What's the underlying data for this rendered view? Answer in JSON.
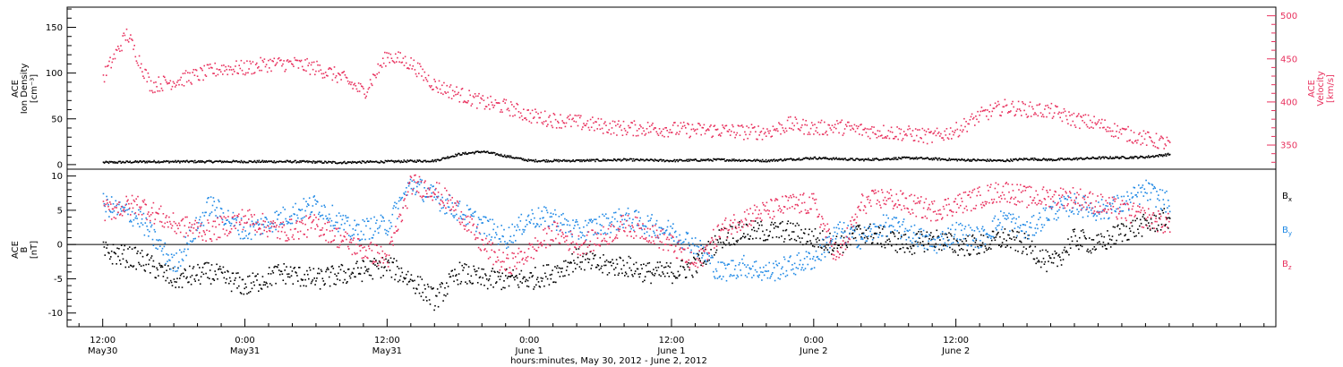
{
  "chart_data": [
    {
      "type": "scatter",
      "panel": "top",
      "ylabel_lines": [
        "ACE",
        "Ion Density",
        "[cm⁻³]"
      ],
      "ylim": [
        -5,
        172
      ],
      "yticks": [
        "0",
        "50",
        "100",
        "150"
      ],
      "ytick_values": [
        0,
        50,
        100,
        150
      ],
      "right_ylabel_lines": [
        "ACE",
        "Velocity",
        "[km/s]"
      ],
      "right_ylim": [
        322,
        510
      ],
      "right_yticks": [
        "350",
        "400",
        "450",
        "500"
      ],
      "right_ytick_values": [
        350,
        400,
        450,
        500
      ],
      "colors": {
        "density": "#000000",
        "velocity": "#e8315e"
      },
      "series": [
        {
          "key": "density",
          "color": "#000000",
          "axis": "left",
          "x": [
            0,
            4,
            8,
            12,
            16,
            20,
            24,
            28,
            30,
            32,
            34,
            36,
            40,
            44,
            48,
            52,
            56,
            60,
            64,
            68,
            72,
            76,
            78,
            80,
            84,
            88,
            90
          ],
          "y": [
            3,
            4,
            4,
            4,
            4,
            3,
            4,
            5,
            12,
            15,
            10,
            5,
            5,
            6,
            5,
            6,
            5,
            8,
            6,
            8,
            6,
            5,
            7,
            6,
            8,
            9,
            12
          ]
        },
        {
          "key": "velocity",
          "color": "#e8315e",
          "axis": "right",
          "x": [
            0,
            2,
            4,
            6,
            8,
            10,
            12,
            14,
            16,
            18,
            20,
            22,
            24,
            26,
            28,
            30,
            32,
            34,
            36,
            38,
            40,
            42,
            44,
            46,
            48,
            50,
            52,
            54,
            56,
            58,
            60,
            62,
            64,
            66,
            68,
            70,
            72,
            74,
            76,
            78,
            80,
            82,
            84,
            86,
            88,
            90
          ],
          "y": [
            430,
            480,
            420,
            425,
            432,
            440,
            440,
            445,
            445,
            440,
            430,
            412,
            455,
            445,
            420,
            410,
            400,
            395,
            385,
            380,
            377,
            373,
            370,
            370,
            369,
            368,
            368,
            366,
            366,
            375,
            370,
            372,
            368,
            366,
            364,
            360,
            368,
            385,
            395,
            392,
            390,
            380,
            375,
            365,
            358,
            352
          ]
        }
      ]
    },
    {
      "type": "scatter",
      "panel": "bottom",
      "ylabel_lines": [
        "ACE",
        "B",
        "[nT]"
      ],
      "ylim": [
        -12,
        11
      ],
      "yticks": [
        "10",
        "5",
        "0",
        "-5",
        "-10"
      ],
      "ytick_values": [
        10,
        5,
        0,
        -5,
        -10
      ],
      "legend": [
        "Bx",
        "By",
        "Bz"
      ],
      "legend_placement": "right",
      "colors": {
        "Bx": "#000000",
        "By": "#1e88e5",
        "Bz": "#e8315e"
      },
      "series": [
        {
          "key": "Bx",
          "color": "#000000",
          "x": [
            0,
            3,
            6,
            9,
            12,
            15,
            18,
            21,
            24,
            26,
            28,
            30,
            32,
            34,
            36,
            38,
            40,
            42,
            44,
            46,
            48,
            50,
            52,
            54,
            56,
            58,
            60,
            62,
            64,
            66,
            68,
            70,
            72,
            74,
            76,
            78,
            80,
            82,
            84,
            86,
            88,
            90
          ],
          "y": [
            -1,
            -2,
            -5,
            -4,
            -6,
            -4,
            -5,
            -4,
            -3,
            -5,
            -8,
            -4,
            -5,
            -5,
            -5,
            -4,
            -2,
            -3,
            -3,
            -4,
            -4,
            -3,
            1,
            2,
            2,
            2,
            1,
            0,
            2,
            1,
            0,
            1,
            0,
            0,
            1,
            0,
            -3,
            1,
            0,
            2,
            3,
            4
          ]
        },
        {
          "key": "By",
          "color": "#1e88e5",
          "x": [
            0,
            3,
            6,
            9,
            12,
            15,
            18,
            21,
            24,
            26,
            28,
            30,
            32,
            34,
            36,
            38,
            40,
            42,
            44,
            46,
            48,
            50,
            52,
            54,
            56,
            58,
            60,
            62,
            64,
            66,
            68,
            70,
            72,
            74,
            76,
            78,
            80,
            82,
            84,
            86,
            88,
            90
          ],
          "y": [
            6,
            4,
            -3,
            6,
            2,
            4,
            6,
            2,
            3,
            9,
            7,
            5,
            3,
            1,
            4,
            4,
            2,
            3,
            4,
            3,
            2,
            0,
            -4,
            -3,
            -4,
            -3,
            -2,
            2,
            1,
            3,
            2,
            0,
            2,
            1,
            4,
            2,
            5,
            6,
            5,
            6,
            8,
            6
          ]
        },
        {
          "key": "Bz",
          "color": "#e8315e",
          "x": [
            0,
            3,
            6,
            9,
            12,
            15,
            18,
            21,
            24,
            26,
            28,
            30,
            32,
            34,
            36,
            38,
            40,
            42,
            44,
            46,
            48,
            50,
            52,
            54,
            56,
            58,
            60,
            62,
            64,
            66,
            68,
            70,
            72,
            74,
            76,
            78,
            80,
            82,
            84,
            86,
            88,
            90
          ],
          "y": [
            5,
            6,
            3,
            2,
            4,
            2,
            3,
            0,
            -2,
            9,
            8,
            5,
            0,
            -3,
            -1,
            2,
            0,
            1,
            3,
            2,
            0,
            -3,
            2,
            4,
            5,
            6,
            6,
            -2,
            6,
            7,
            6,
            5,
            6,
            7,
            8,
            7,
            7,
            7,
            6,
            5,
            4,
            3
          ]
        }
      ]
    }
  ],
  "x_axis": {
    "xlim_hours": [
      -3,
      99
    ],
    "ticks": [
      {
        "h": 0,
        "time": "12:00",
        "date": "May30"
      },
      {
        "h": 12,
        "time": "0:00",
        "date": "May31"
      },
      {
        "h": 24,
        "time": "12:00",
        "date": "May31"
      },
      {
        "h": 36,
        "time": "0:00",
        "date": "June 1"
      },
      {
        "h": 48,
        "time": "12:00",
        "date": "June 1"
      },
      {
        "h": 60,
        "time": "0:00",
        "date": "June 2"
      },
      {
        "h": 72,
        "time": "12:00",
        "date": "June 2"
      }
    ],
    "title": "hours:minutes, May 30, 2012 - June  2, 2012"
  },
  "legend_labels": {
    "Bx": "B",
    "Bx_sub": "x",
    "By": "B",
    "By_sub": "y",
    "Bz": "B",
    "Bz_sub": "z"
  }
}
